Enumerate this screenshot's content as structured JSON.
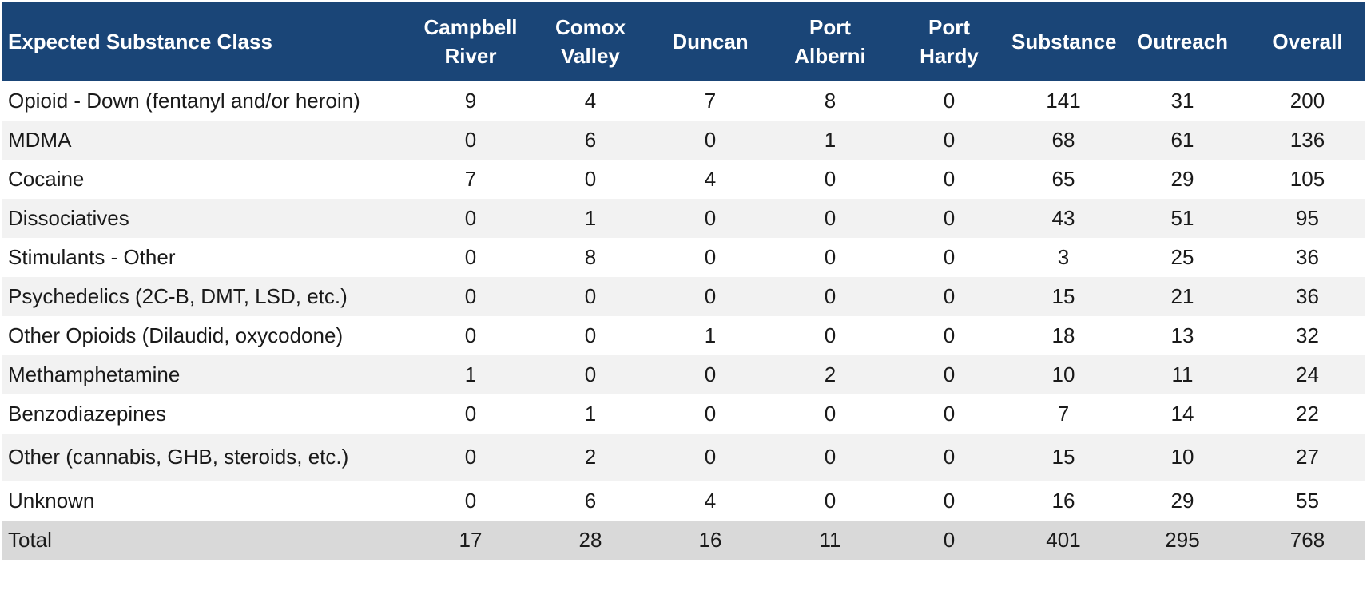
{
  "chart_data": {
    "type": "table",
    "columns": [
      "Expected Substance Class",
      [
        "Campbell",
        "River"
      ],
      [
        "Comox",
        "Valley"
      ],
      "Duncan",
      [
        "Port",
        "Alberni"
      ],
      [
        "Port",
        "Hardy"
      ],
      "Substance",
      "Outreach",
      "Overall"
    ],
    "rows": [
      {
        "label": "Opioid - Down (fentanyl and/or heroin)",
        "values": [
          "9",
          "4",
          "7",
          "8",
          "0",
          "141",
          "31",
          "200"
        ]
      },
      {
        "label": "MDMA",
        "values": [
          "0",
          "6",
          "0",
          "1",
          "0",
          "68",
          "61",
          "136"
        ]
      },
      {
        "label": "Cocaine",
        "values": [
          "7",
          "0",
          "4",
          "0",
          "0",
          "65",
          "29",
          "105"
        ]
      },
      {
        "label": "Dissociatives",
        "values": [
          "0",
          "1",
          "0",
          "0",
          "0",
          "43",
          "51",
          "95"
        ]
      },
      {
        "label": "Stimulants - Other",
        "values": [
          "0",
          "8",
          "0",
          "0",
          "0",
          "3",
          "25",
          "36"
        ]
      },
      {
        "label": "Psychedelics (2C-B, DMT, LSD, etc.)",
        "values": [
          "0",
          "0",
          "0",
          "0",
          "0",
          "15",
          "21",
          "36"
        ]
      },
      {
        "label": "Other Opioids (Dilaudid, oxycodone)",
        "values": [
          "0",
          "0",
          "1",
          "0",
          "0",
          "18",
          "13",
          "32"
        ]
      },
      {
        "label": "Methamphetamine",
        "values": [
          "1",
          "0",
          "0",
          "2",
          "0",
          "10",
          "11",
          "24"
        ]
      },
      {
        "label": "Benzodiazepines",
        "values": [
          "0",
          "1",
          "0",
          "0",
          "0",
          "7",
          "14",
          "22"
        ]
      },
      {
        "label": "Other (cannabis, GHB, steroids, etc.)",
        "values": [
          "0",
          "2",
          "0",
          "0",
          "0",
          "15",
          "10",
          "27"
        ]
      },
      {
        "label": "Unknown",
        "values": [
          "0",
          "6",
          "4",
          "0",
          "0",
          "16",
          "29",
          "55"
        ]
      }
    ],
    "total": {
      "label": "Total",
      "values": [
        "17",
        "28",
        "16",
        "11",
        "0",
        "401",
        "295",
        "768"
      ]
    },
    "colors": {
      "header_bg": "#1a4577",
      "header_text": "#ffffff",
      "row_alt_bg": "#f2f2f2",
      "total_bg": "#d9d9d9"
    }
  }
}
